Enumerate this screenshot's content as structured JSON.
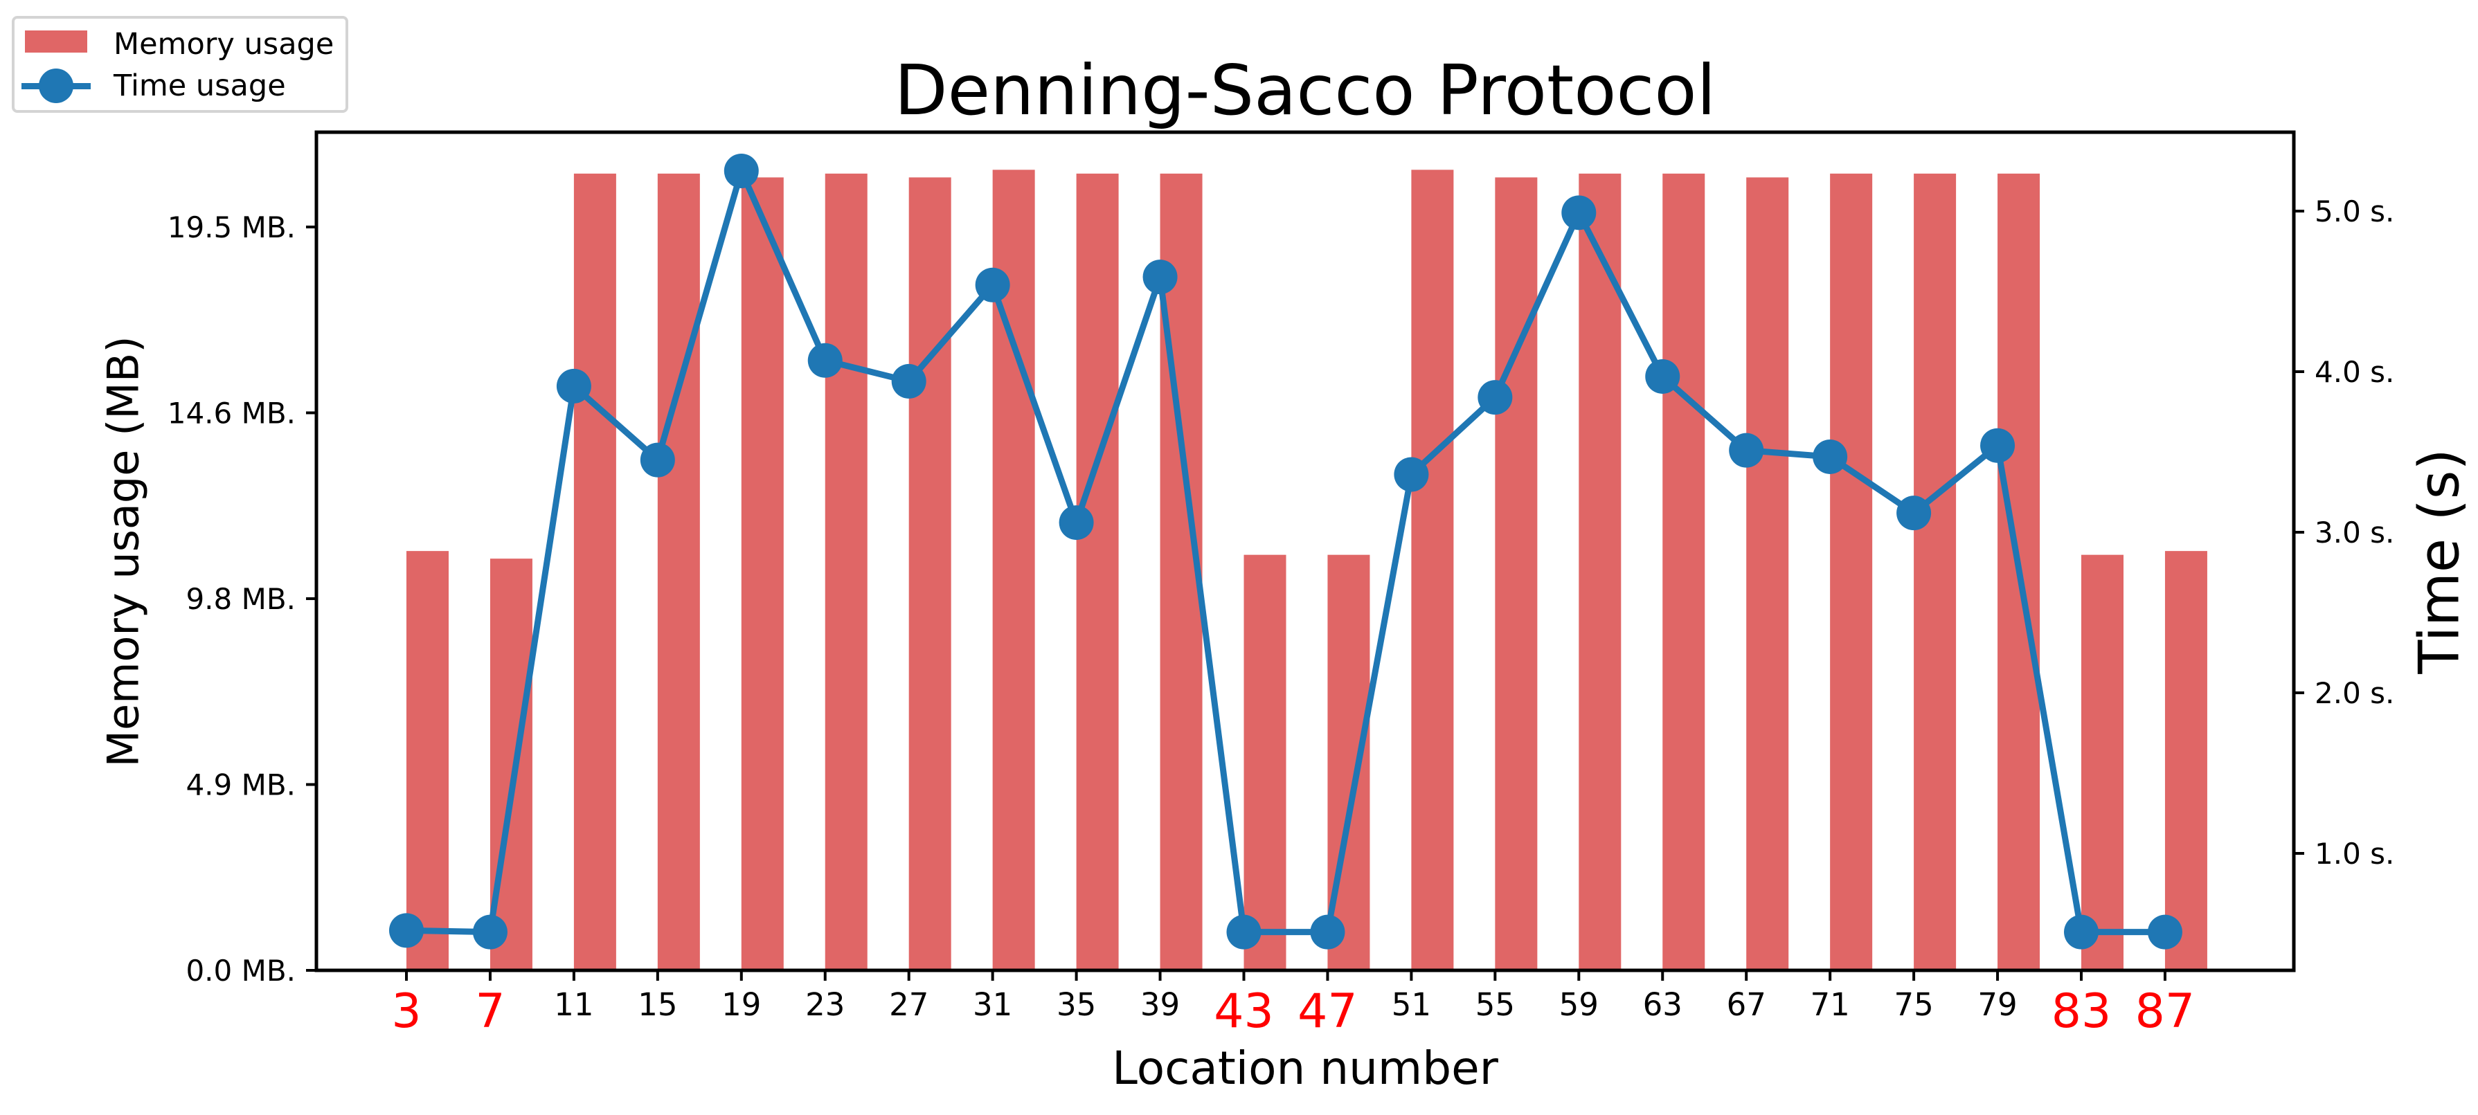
{
  "chart_data": {
    "type": "bar+line",
    "title": "Denning-Sacco Protocol",
    "xlabel": "Location number",
    "ylabel_left": "Memory usage (MB)",
    "ylabel_right": "Time (s)",
    "categories": [
      3,
      7,
      11,
      15,
      19,
      23,
      27,
      31,
      35,
      39,
      43,
      47,
      51,
      55,
      59,
      63,
      67,
      71,
      75,
      79,
      83,
      87
    ],
    "highlighted_categories": [
      3,
      7,
      43,
      47,
      83,
      87
    ],
    "highlight_color": "#ff0000",
    "series": [
      {
        "name": "Memory usage",
        "type": "bar",
        "axis": "left",
        "color": "#e06666",
        "values": [
          11.0,
          10.8,
          20.9,
          20.9,
          20.8,
          20.9,
          20.8,
          21.0,
          20.9,
          20.9,
          10.9,
          10.9,
          21.0,
          20.8,
          20.9,
          20.9,
          20.8,
          20.9,
          20.9,
          20.9,
          10.9,
          11.0
        ]
      },
      {
        "name": "Time usage",
        "type": "line",
        "axis": "right",
        "color": "#1f77b4",
        "marker": "circle",
        "values": [
          0.52,
          0.51,
          3.91,
          3.45,
          5.25,
          4.07,
          3.94,
          4.54,
          3.06,
          4.59,
          0.51,
          0.51,
          3.36,
          3.84,
          4.99,
          3.97,
          3.51,
          3.47,
          3.12,
          3.54,
          0.51,
          0.51
        ]
      }
    ],
    "left_axis": {
      "ticks": [
        0.0,
        4.875,
        9.75,
        14.625,
        19.5
      ],
      "tick_labels": [
        "0.0 MB.",
        "4.9 MB.",
        "9.8 MB.",
        "14.6 MB.",
        "19.5 MB."
      ],
      "ylim": [
        0,
        21.98
      ]
    },
    "right_axis": {
      "ticks": [
        1.0,
        2.0,
        3.0,
        4.0,
        5.0
      ],
      "tick_labels": [
        "1.0 s.",
        "2.0 s.",
        "3.0 s.",
        "4.0 s.",
        "5.0 s."
      ],
      "ylim": [
        0.23,
        5.45
      ]
    },
    "grid": false,
    "legend_position": "upper left (outside plot)"
  },
  "legend": {
    "items": [
      {
        "label": "Memory usage",
        "symbol": "bar"
      },
      {
        "label": "Time usage",
        "symbol": "line-circle"
      }
    ]
  }
}
